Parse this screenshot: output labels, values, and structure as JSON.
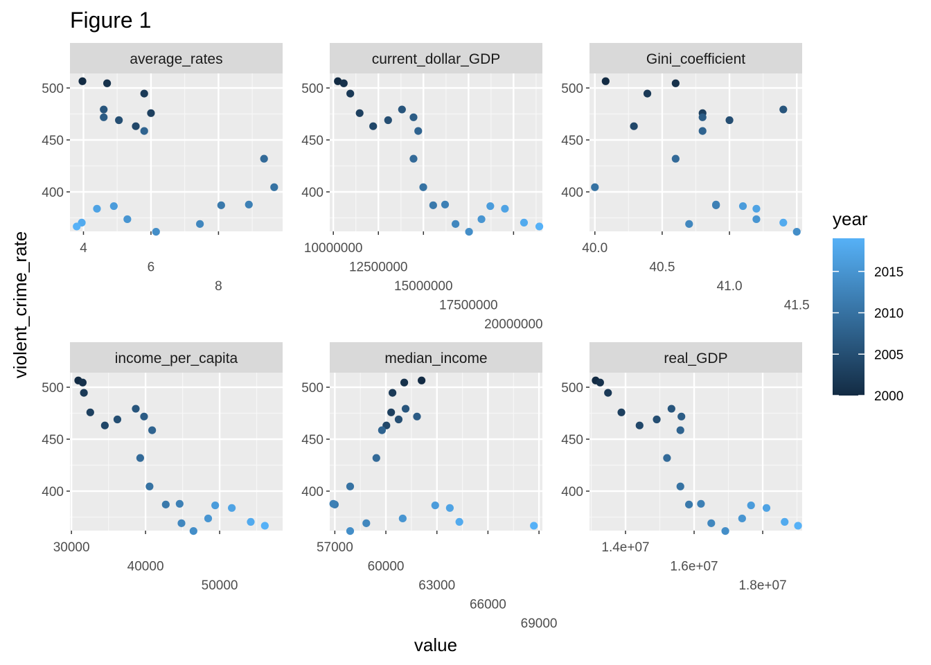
{
  "figure_title": "Figure 1",
  "chart_data": {
    "type": "scatter",
    "title": "Figure 1",
    "xlabel": "value",
    "ylabel": "violent_crime_rate",
    "y_ticks": [
      400,
      450,
      500
    ],
    "ylim": [
      362,
      514
    ],
    "grid": true,
    "legend": {
      "title": "year",
      "placement": "right",
      "type": "colorbar",
      "range": [
        2000,
        2019
      ],
      "ticks": [
        2000,
        2005,
        2010,
        2015
      ],
      "color_low": "#132B43",
      "color_high": "#56B1F7"
    },
    "panels": [
      {
        "name": "average_rates",
        "xlim": [
          3.6,
          9.9
        ],
        "x_ticks": [
          4,
          6,
          8
        ],
        "x_tick_labels": [
          "4",
          "6",
          "8"
        ],
        "points": [
          {
            "x": 3.97,
            "y": 506.5,
            "year": 2000
          },
          {
            "x": 4.7,
            "y": 504.5,
            "year": 2001
          },
          {
            "x": 5.8,
            "y": 494.6,
            "year": 2002
          },
          {
            "x": 6.0,
            "y": 475.8,
            "year": 2003
          },
          {
            "x": 5.55,
            "y": 463.2,
            "year": 2004
          },
          {
            "x": 5.05,
            "y": 469.0,
            "year": 2005
          },
          {
            "x": 4.6,
            "y": 479.3,
            "year": 2006
          },
          {
            "x": 4.6,
            "y": 471.8,
            "year": 2007
          },
          {
            "x": 5.8,
            "y": 458.6,
            "year": 2008
          },
          {
            "x": 9.35,
            "y": 431.9,
            "year": 2009
          },
          {
            "x": 9.65,
            "y": 404.5,
            "year": 2010
          },
          {
            "x": 8.08,
            "y": 387.1,
            "year": 2011
          },
          {
            "x": 8.9,
            "y": 387.8,
            "year": 2012
          },
          {
            "x": 7.45,
            "y": 369.1,
            "year": 2013
          },
          {
            "x": 6.15,
            "y": 361.6,
            "year": 2014
          },
          {
            "x": 5.3,
            "y": 373.7,
            "year": 2015
          },
          {
            "x": 4.9,
            "y": 386.3,
            "year": 2016
          },
          {
            "x": 4.4,
            "y": 383.8,
            "year": 2017
          },
          {
            "x": 3.95,
            "y": 370.4,
            "year": 2018
          },
          {
            "x": 3.8,
            "y": 366.7,
            "year": 2019
          }
        ]
      },
      {
        "name": "current_dollar_GDP",
        "xlim": [
          9800000,
          21600000
        ],
        "x_ticks": [
          10000000,
          12500000,
          15000000,
          17500000,
          20000000
        ],
        "x_tick_labels": [
          "10000000",
          "12500000",
          "15000000",
          "17500000",
          "20000000"
        ],
        "points": [
          {
            "x": 10250000,
            "y": 506.5,
            "year": 2000
          },
          {
            "x": 10580000,
            "y": 504.5,
            "year": 2001
          },
          {
            "x": 10940000,
            "y": 494.6,
            "year": 2002
          },
          {
            "x": 11460000,
            "y": 475.8,
            "year": 2003
          },
          {
            "x": 12210000,
            "y": 463.2,
            "year": 2004
          },
          {
            "x": 13040000,
            "y": 469.0,
            "year": 2005
          },
          {
            "x": 13810000,
            "y": 479.3,
            "year": 2006
          },
          {
            "x": 14450000,
            "y": 471.8,
            "year": 2007
          },
          {
            "x": 14710000,
            "y": 458.6,
            "year": 2008
          },
          {
            "x": 14450000,
            "y": 431.9,
            "year": 2009
          },
          {
            "x": 14990000,
            "y": 404.5,
            "year": 2010
          },
          {
            "x": 15540000,
            "y": 387.1,
            "year": 2011
          },
          {
            "x": 16200000,
            "y": 387.8,
            "year": 2012
          },
          {
            "x": 16780000,
            "y": 369.1,
            "year": 2013
          },
          {
            "x": 17530000,
            "y": 361.6,
            "year": 2014
          },
          {
            "x": 18220000,
            "y": 373.7,
            "year": 2015
          },
          {
            "x": 18710000,
            "y": 386.3,
            "year": 2016
          },
          {
            "x": 19520000,
            "y": 383.8,
            "year": 2017
          },
          {
            "x": 20580000,
            "y": 370.4,
            "year": 2018
          },
          {
            "x": 21430000,
            "y": 366.7,
            "year": 2019
          }
        ]
      },
      {
        "name": "Gini_coefficient",
        "xlim": [
          39.96,
          41.54
        ],
        "x_ticks": [
          40.0,
          40.5,
          41.0,
          41.5
        ],
        "x_tick_labels": [
          "40.0",
          "40.5",
          "41.0",
          "41.5"
        ],
        "points": [
          {
            "x": 40.08,
            "y": 506.5,
            "year": 2000
          },
          {
            "x": 40.6,
            "y": 504.5,
            "year": 2001
          },
          {
            "x": 40.39,
            "y": 494.6,
            "year": 2002
          },
          {
            "x": 40.8,
            "y": 475.8,
            "year": 2003
          },
          {
            "x": 40.29,
            "y": 463.2,
            "year": 2004
          },
          {
            "x": 41.0,
            "y": 469.0,
            "year": 2005
          },
          {
            "x": 41.4,
            "y": 479.3,
            "year": 2006
          },
          {
            "x": 40.8,
            "y": 471.8,
            "year": 2007
          },
          {
            "x": 40.8,
            "y": 458.6,
            "year": 2008
          },
          {
            "x": 40.6,
            "y": 431.9,
            "year": 2009
          },
          {
            "x": 40.0,
            "y": 404.5,
            "year": 2010
          },
          {
            "x": 40.9,
            "y": 387.1,
            "year": 2011
          },
          {
            "x": 40.9,
            "y": 387.8,
            "year": 2012
          },
          {
            "x": 40.7,
            "y": 369.1,
            "year": 2013
          },
          {
            "x": 41.5,
            "y": 361.6,
            "year": 2014
          },
          {
            "x": 41.2,
            "y": 373.7,
            "year": 2015
          },
          {
            "x": 41.1,
            "y": 386.3,
            "year": 2016
          },
          {
            "x": 41.2,
            "y": 383.8,
            "year": 2017
          },
          {
            "x": 41.4,
            "y": 370.4,
            "year": 2018
          }
        ]
      },
      {
        "name": "income_per_capita",
        "xlim": [
          29800,
          58500
        ],
        "x_ticks": [
          30000,
          40000,
          50000
        ],
        "x_tick_labels": [
          "30000",
          "40000",
          "50000"
        ],
        "points": [
          {
            "x": 30920,
            "y": 506.5,
            "year": 2000
          },
          {
            "x": 31520,
            "y": 504.5,
            "year": 2001
          },
          {
            "x": 31680,
            "y": 494.6,
            "year": 2002
          },
          {
            "x": 32540,
            "y": 475.8,
            "year": 2003
          },
          {
            "x": 34510,
            "y": 463.2,
            "year": 2004
          },
          {
            "x": 36200,
            "y": 469.0,
            "year": 2005
          },
          {
            "x": 38680,
            "y": 479.3,
            "year": 2006
          },
          {
            "x": 39800,
            "y": 471.8,
            "year": 2007
          },
          {
            "x": 40890,
            "y": 458.6,
            "year": 2008
          },
          {
            "x": 39280,
            "y": 431.9,
            "year": 2009
          },
          {
            "x": 40540,
            "y": 404.5,
            "year": 2010
          },
          {
            "x": 42730,
            "y": 387.1,
            "year": 2011
          },
          {
            "x": 44600,
            "y": 387.8,
            "year": 2012
          },
          {
            "x": 44850,
            "y": 369.1,
            "year": 2013
          },
          {
            "x": 46470,
            "y": 361.6,
            "year": 2014
          },
          {
            "x": 48450,
            "y": 373.7,
            "year": 2015
          },
          {
            "x": 49400,
            "y": 386.3,
            "year": 2016
          },
          {
            "x": 51640,
            "y": 383.8,
            "year": 2017
          },
          {
            "x": 54200,
            "y": 370.4,
            "year": 2018
          },
          {
            "x": 56100,
            "y": 366.7,
            "year": 2019
          }
        ]
      },
      {
        "name": "median_income",
        "xlim": [
          56700,
          69200
        ],
        "x_ticks": [
          57000,
          60000,
          63000,
          66000,
          69000
        ],
        "x_tick_labels": [
          "57000",
          "60000",
          "63000",
          "66000",
          "69000"
        ],
        "points": [
          {
            "x": 62100,
            "y": 506.5,
            "year": 2000
          },
          {
            "x": 61080,
            "y": 504.5,
            "year": 2001
          },
          {
            "x": 60390,
            "y": 494.6,
            "year": 2002
          },
          {
            "x": 60310,
            "y": 475.8,
            "year": 2003
          },
          {
            "x": 60030,
            "y": 463.2,
            "year": 2004
          },
          {
            "x": 60750,
            "y": 469.0,
            "year": 2005
          },
          {
            "x": 61160,
            "y": 479.3,
            "year": 2006
          },
          {
            "x": 61830,
            "y": 471.8,
            "year": 2007
          },
          {
            "x": 59770,
            "y": 458.6,
            "year": 2008
          },
          {
            "x": 59440,
            "y": 431.9,
            "year": 2009
          },
          {
            "x": 57900,
            "y": 404.5,
            "year": 2010
          },
          {
            "x": 57000,
            "y": 387.1,
            "year": 2011
          },
          {
            "x": 56910,
            "y": 387.8,
            "year": 2012
          },
          {
            "x": 58850,
            "y": 369.1,
            "year": 2013
          },
          {
            "x": 57900,
            "y": 361.6,
            "year": 2014
          },
          {
            "x": 60990,
            "y": 373.7,
            "year": 2015
          },
          {
            "x": 62900,
            "y": 386.3,
            "year": 2016
          },
          {
            "x": 63760,
            "y": 383.8,
            "year": 2017
          },
          {
            "x": 64320,
            "y": 370.4,
            "year": 2018
          },
          {
            "x": 68700,
            "y": 366.7,
            "year": 2019
          }
        ]
      },
      {
        "name": "real_GDP",
        "xlim": [
          12950000,
          19150000
        ],
        "x_ticks": [
          14000000,
          16000000,
          18000000
        ],
        "x_tick_labels": [
          "1.4e+07",
          "1.6e+07",
          "1.8e+07"
        ],
        "points": [
          {
            "x": 13130000,
            "y": 506.5,
            "year": 2000
          },
          {
            "x": 13260000,
            "y": 504.5,
            "year": 2001
          },
          {
            "x": 13490000,
            "y": 494.6,
            "year": 2002
          },
          {
            "x": 13880000,
            "y": 475.8,
            "year": 2003
          },
          {
            "x": 14410000,
            "y": 463.2,
            "year": 2004
          },
          {
            "x": 14910000,
            "y": 469.0,
            "year": 2005
          },
          {
            "x": 15340000,
            "y": 479.3,
            "year": 2006
          },
          {
            "x": 15630000,
            "y": 471.8,
            "year": 2007
          },
          {
            "x": 15600000,
            "y": 458.6,
            "year": 2008
          },
          {
            "x": 15210000,
            "y": 431.9,
            "year": 2009
          },
          {
            "x": 15600000,
            "y": 404.5,
            "year": 2010
          },
          {
            "x": 15850000,
            "y": 387.1,
            "year": 2011
          },
          {
            "x": 16200000,
            "y": 387.8,
            "year": 2012
          },
          {
            "x": 16500000,
            "y": 369.1,
            "year": 2013
          },
          {
            "x": 16910000,
            "y": 361.6,
            "year": 2014
          },
          {
            "x": 17400000,
            "y": 373.7,
            "year": 2015
          },
          {
            "x": 17660000,
            "y": 386.3,
            "year": 2016
          },
          {
            "x": 18110000,
            "y": 383.8,
            "year": 2017
          },
          {
            "x": 18640000,
            "y": 370.4,
            "year": 2018
          },
          {
            "x": 19030000,
            "y": 366.7,
            "year": 2019
          }
        ]
      }
    ]
  }
}
